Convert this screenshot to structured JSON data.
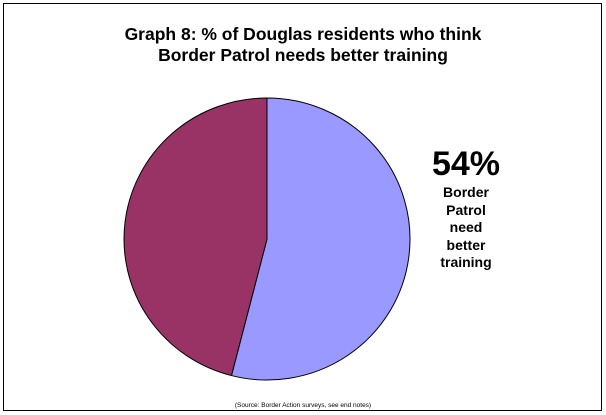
{
  "chart_data": {
    "type": "pie",
    "title_lines": [
      "Graph 8: % of Douglas residents who think",
      "Border Patrol needs better training"
    ],
    "slices": [
      {
        "value": 54,
        "color": "#9999ff"
      },
      {
        "value": 46,
        "color": "#993366"
      }
    ],
    "callout": {
      "value": "54%",
      "text": "Border Patrol need better training"
    },
    "source": "(Source: Border Action surveys, see end notes)"
  }
}
